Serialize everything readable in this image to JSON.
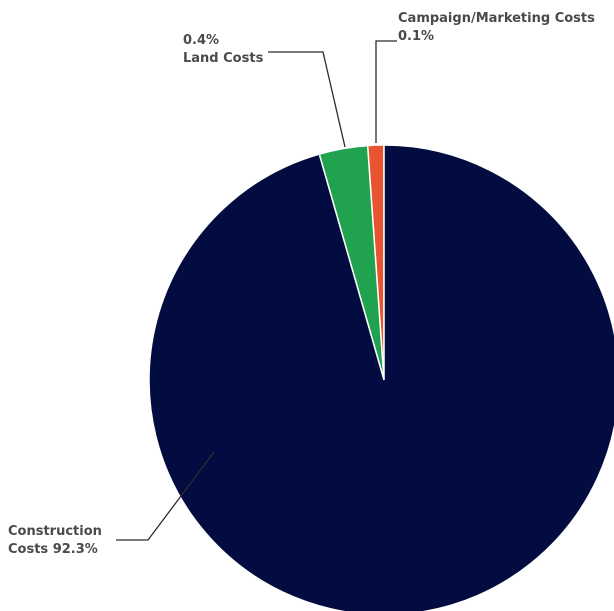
{
  "chart_data": {
    "type": "pie",
    "title": "",
    "slices": [
      {
        "key": "campaign",
        "label_lines": [
          "Campaign/Marketing Costs",
          "0.1%"
        ],
        "value": 0.1,
        "color": "#e8542f"
      },
      {
        "key": "land",
        "label_lines": [
          "0.4%",
          "Land Costs"
        ],
        "value": 0.4,
        "color": "#21a24f"
      },
      {
        "key": "construction",
        "label_lines": [
          "Construction",
          "Costs 92.3%"
        ],
        "value": 92.3,
        "color": "#020c40"
      }
    ]
  }
}
